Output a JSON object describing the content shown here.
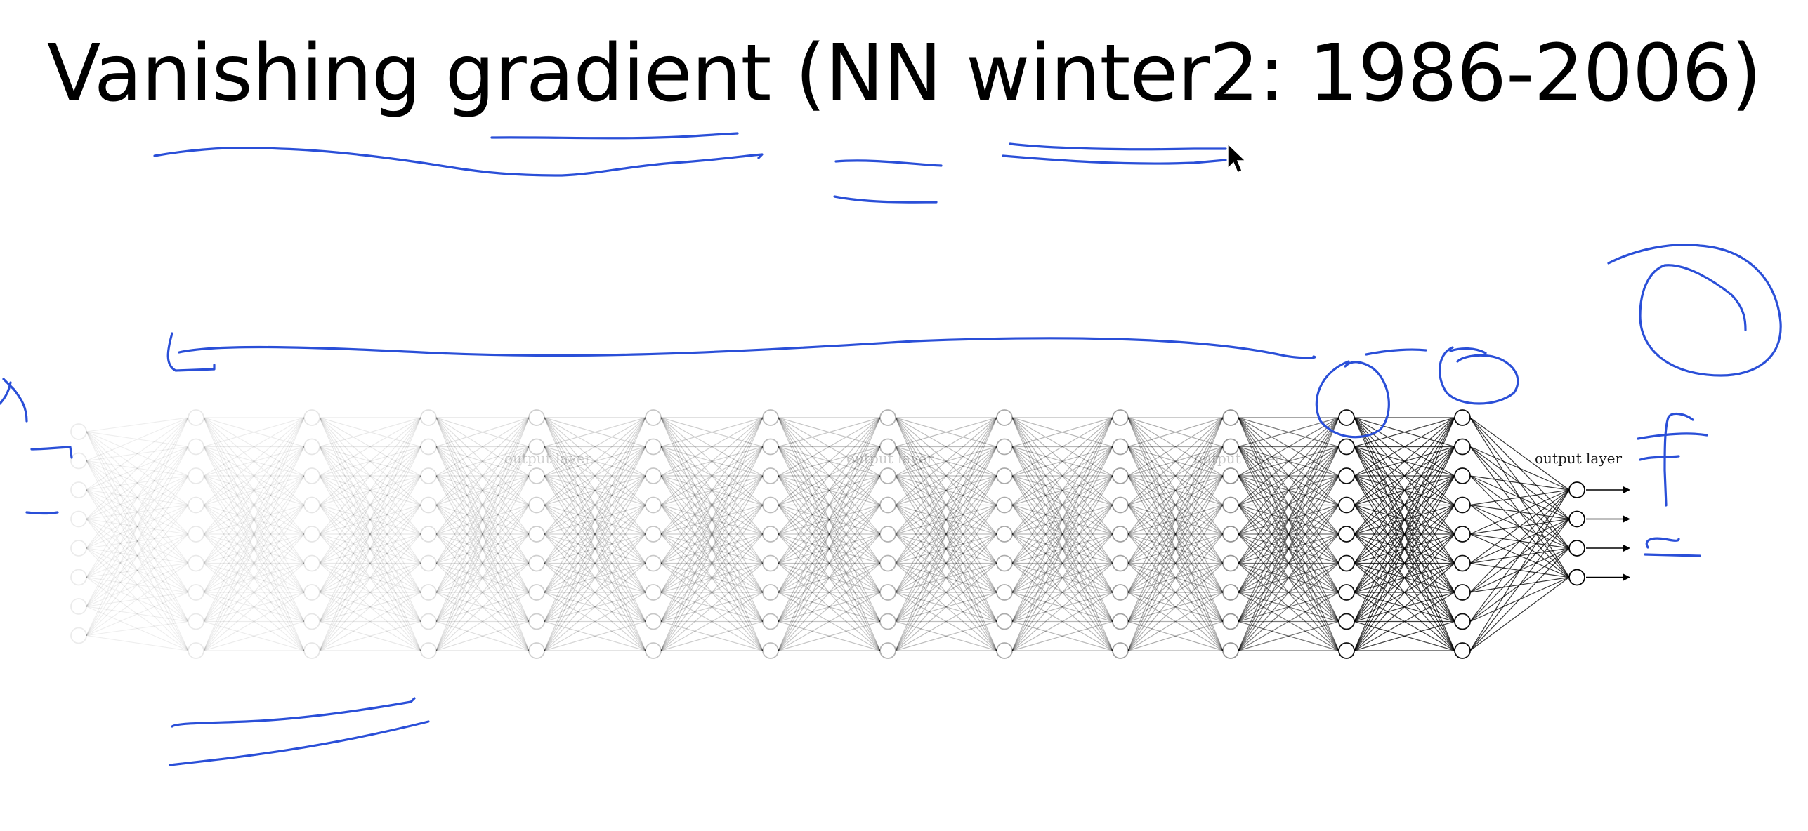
{
  "slide": {
    "title": "Vanishing gradient (NN winter2: 1986-2006)"
  },
  "network": {
    "layer_label": "output layer",
    "faded_labels": [
      "output layer",
      "output layer",
      "output layer"
    ],
    "layers": [
      {
        "neurons": 8,
        "opacity": 0.07
      },
      {
        "neurons": 9,
        "opacity": 0.08
      },
      {
        "neurons": 9,
        "opacity": 0.09
      },
      {
        "neurons": 9,
        "opacity": 0.11
      },
      {
        "neurons": 9,
        "opacity": 0.17
      },
      {
        "neurons": 9,
        "opacity": 0.2
      },
      {
        "neurons": 9,
        "opacity": 0.24
      },
      {
        "neurons": 9,
        "opacity": 0.27
      },
      {
        "neurons": 9,
        "opacity": 0.3
      },
      {
        "neurons": 9,
        "opacity": 0.33
      },
      {
        "neurons": 9,
        "opacity": 0.38
      },
      {
        "neurons": 9,
        "opacity": 0.85
      },
      {
        "neurons": 9,
        "opacity": 0.85
      },
      {
        "neurons": 4,
        "opacity": 0.9
      }
    ]
  },
  "colors": {
    "ink": "#2a4fd8",
    "network": "#000000",
    "cursor": "#000000"
  },
  "icons": {
    "cursor": "mouse-pointer-icon"
  }
}
